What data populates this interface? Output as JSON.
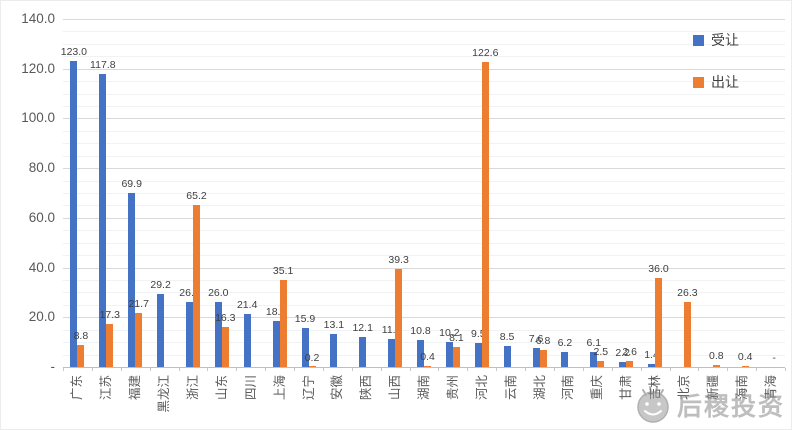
{
  "chart_data": {
    "type": "bar",
    "title": "",
    "categories": [
      "广东",
      "江苏",
      "福建",
      "黑龙江",
      "浙江",
      "山东",
      "四川",
      "上海",
      "辽宁",
      "安徽",
      "陕西",
      "山西",
      "湖南",
      "贵州",
      "河北",
      "云南",
      "湖北",
      "河南",
      "重庆",
      "甘肃",
      "吉林",
      "北京",
      "新疆",
      "海南",
      "青海"
    ],
    "series": [
      {
        "name": "受让",
        "color": "#4472C4",
        "values": [
          123.0,
          117.8,
          69.9,
          29.2,
          26.1,
          26.0,
          21.4,
          18.6,
          15.9,
          13.1,
          12.1,
          11.2,
          10.8,
          10.2,
          9.5,
          8.5,
          7.6,
          6.2,
          6.1,
          2.2,
          1.4,
          null,
          null,
          null,
          null
        ],
        "labels": [
          "123.0",
          "117.8",
          "69.9",
          "29.2",
          "26.1",
          "26.0",
          "21.4",
          "18.6",
          "15.9",
          "13.1",
          "12.1",
          "11.2",
          "10.8",
          "10.2",
          "9.5",
          "8.5",
          "7.6",
          "6.2",
          "6.1",
          "2.2",
          "1.4",
          "",
          "",
          "",
          ""
        ]
      },
      {
        "name": "出让",
        "color": "#ED7D31",
        "values": [
          8.8,
          17.3,
          21.7,
          null,
          65.2,
          16.3,
          null,
          35.1,
          0.2,
          null,
          null,
          39.3,
          0.4,
          8.1,
          122.6,
          null,
          6.8,
          null,
          2.5,
          2.6,
          36.0,
          26.3,
          0.8,
          0.4,
          0
        ],
        "labels": [
          "8.8",
          "17.3",
          "21.7",
          "",
          "65.2",
          "16.3",
          "",
          "35.1",
          "0.2",
          "",
          "",
          "39.3",
          "0.4",
          "8.1",
          "122.6",
          "",
          "6.8",
          "",
          "2.5",
          "2.6",
          "36.0",
          "26.3",
          "0.8",
          "0.4",
          "-"
        ]
      }
    ],
    "y_axis": {
      "min": 0,
      "max": 140,
      "major_interval": 20,
      "minor_interval": 5,
      "tick_labels": [
        "140.0",
        "120.0",
        "100.0",
        "80.0",
        "60.0",
        "40.0",
        "20.0",
        "-"
      ]
    },
    "legend_position": "top-right",
    "grid": "on"
  },
  "colors": {
    "series_blue": "#4472C4",
    "series_orange": "#ED7D31",
    "grid_major": "#d9d9d9",
    "grid_minor": "#f0f3f6",
    "axis_line": "#bfbfbf",
    "axis_text": "#595959",
    "label_text": "#3f3f3f"
  },
  "watermark": {
    "text": "后稷投资",
    "logo": "smiley-face-logo"
  }
}
